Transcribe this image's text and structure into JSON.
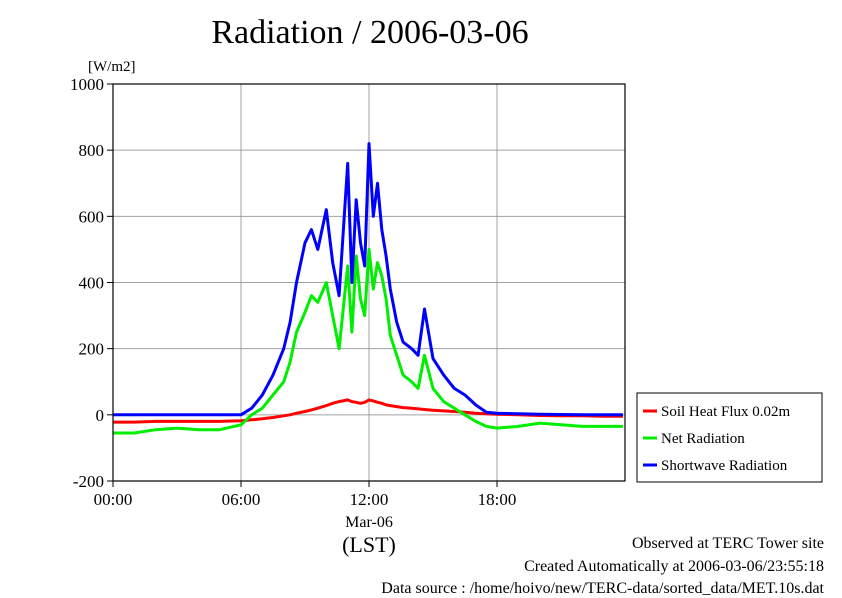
{
  "chart_data": {
    "type": "line",
    "title": "Radiation / 2006-03-06",
    "ylabel_unit": "[W/m2]",
    "xlabel_date": "Mar-06",
    "xlabel_tz": "(LST)",
    "ylim": [
      -200,
      1000
    ],
    "xlim": [
      "00:00",
      "24:00"
    ],
    "x_ticks": [
      "00:00",
      "06:00",
      "12:00",
      "18:00"
    ],
    "y_ticks": [
      -200,
      0,
      200,
      400,
      600,
      800,
      1000
    ],
    "grid": true,
    "legend_position": "right",
    "x_hours": [
      0,
      1,
      2,
      3,
      4,
      5,
      6,
      6.5,
      7,
      7.5,
      8,
      8.3,
      8.6,
      9,
      9.3,
      9.6,
      10,
      10.3,
      10.6,
      11,
      11.2,
      11.4,
      11.6,
      11.8,
      12,
      12.2,
      12.4,
      12.6,
      12.8,
      13,
      13.3,
      13.6,
      14,
      14.3,
      14.6,
      15,
      15.5,
      16,
      16.5,
      17,
      17.5,
      18,
      19,
      20,
      21,
      22,
      23,
      23.9
    ],
    "series": [
      {
        "name": "Soil Heat Flux 0.02m",
        "color": "#ff0000",
        "values": [
          -22,
          -22,
          -20,
          -20,
          -20,
          -20,
          -18,
          -15,
          -12,
          -8,
          -3,
          0,
          5,
          10,
          15,
          20,
          28,
          35,
          40,
          45,
          40,
          38,
          35,
          38,
          45,
          42,
          38,
          35,
          30,
          28,
          25,
          22,
          20,
          18,
          16,
          14,
          12,
          10,
          8,
          5,
          3,
          2,
          0,
          -2,
          -3,
          -3,
          -4,
          -4
        ]
      },
      {
        "name": "Net Radiation",
        "color": "#00ee00",
        "values": [
          -55,
          -55,
          -45,
          -40,
          -45,
          -45,
          -30,
          0,
          20,
          60,
          100,
          160,
          250,
          310,
          360,
          340,
          400,
          300,
          200,
          450,
          250,
          480,
          350,
          300,
          500,
          380,
          460,
          420,
          350,
          240,
          180,
          120,
          100,
          80,
          180,
          80,
          40,
          20,
          0,
          -20,
          -35,
          -40,
          -35,
          -25,
          -30,
          -35,
          -35,
          -35
        ]
      },
      {
        "name": "Shortwave Radiation",
        "color": "#0000ff",
        "values": [
          0,
          0,
          0,
          0,
          0,
          0,
          0,
          20,
          60,
          120,
          200,
          280,
          400,
          520,
          560,
          500,
          620,
          460,
          360,
          760,
          400,
          650,
          520,
          450,
          820,
          600,
          700,
          560,
          480,
          380,
          280,
          220,
          200,
          180,
          320,
          170,
          120,
          80,
          60,
          30,
          8,
          5,
          3,
          2,
          1,
          0,
          0,
          0
        ]
      }
    ]
  },
  "footer": {
    "site": "Observed at TERC Tower site",
    "created": "Created Automatically at 2006-03-06/23:55:18",
    "source": "Data source : /home/hoivo/new/TERC-data/sorted_data/MET.10s.dat"
  }
}
